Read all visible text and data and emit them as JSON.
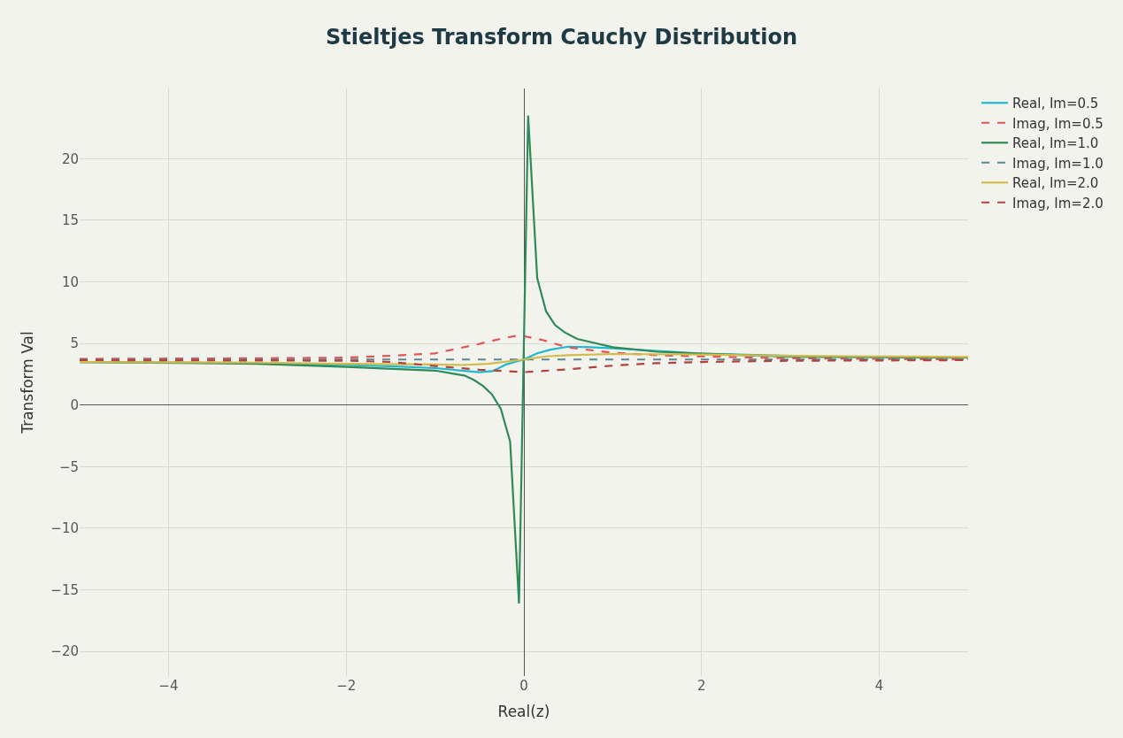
{
  "chart_data": {
    "type": "line",
    "title": "Stieltjes Transform Cauchy Distribution",
    "xlabel": "Real(z)",
    "ylabel": "Transform Val",
    "xlim": [
      -5,
      5
    ],
    "xticks": [
      -4,
      -2,
      0,
      2,
      4
    ],
    "ylim": [
      -22,
      25.7
    ],
    "yticks": [
      -20,
      -15,
      -10,
      -5,
      0,
      5,
      10,
      15,
      20
    ],
    "grid": true,
    "legend": "top right",
    "marker": "none",
    "series": [
      {
        "name": "Real, Im=0.5",
        "color": "#1fb8cd",
        "line_style": "solid",
        "x": [
          -5,
          -3,
          -2,
          -1.5,
          -1,
          -0.7,
          -0.5,
          -0.35,
          -0.2,
          -0.1,
          0,
          0.15,
          0.3,
          0.5,
          0.75,
          1,
          1.5,
          2,
          3
        ],
        "values": [
          3.5,
          3.4,
          3.25,
          3.15,
          3.0,
          2.8,
          2.67,
          2.75,
          3.3,
          3.5,
          3.7,
          4.2,
          4.5,
          4.74,
          4.7,
          4.6,
          4.4,
          4.17,
          4.0
        ]
      },
      {
        "name": "Imag, Im=0.5",
        "color": "#e05555",
        "line_style": "dashed",
        "x": [
          -5,
          -3,
          -2,
          -1.5,
          -1,
          -0.5,
          -0.25,
          -0.05,
          0.2,
          0.5,
          1,
          1.5,
          2,
          3,
          4,
          5
        ],
        "values": [
          3.75,
          3.8,
          3.85,
          4.0,
          4.2,
          4.97,
          5.4,
          5.67,
          5.3,
          4.67,
          4.25,
          4.05,
          3.95,
          3.8,
          3.75,
          3.7
        ]
      },
      {
        "name": "Real, Im=1.0",
        "color": "#2e8b57",
        "line_style": "solid",
        "x": [
          -5,
          -3,
          -2,
          -1,
          -0.67,
          -0.56,
          -0.46,
          -0.36,
          -0.26,
          -0.155,
          -0.055,
          0.048,
          0.15,
          0.25,
          0.35,
          0.46,
          0.6,
          1,
          1.5,
          2,
          3,
          4,
          5
        ],
        "values": [
          3.5,
          3.35,
          3.1,
          2.8,
          2.4,
          2.03,
          1.55,
          0.86,
          -0.3,
          -2.96,
          -16.1,
          23.5,
          10.3,
          7.6,
          6.5,
          5.9,
          5.37,
          4.7,
          4.33,
          4.17,
          3.93,
          3.88,
          3.85
        ]
      },
      {
        "name": "Imag, Im=1.0",
        "color": "#5d878f",
        "line_style": "dashed",
        "x": [
          -5,
          5
        ],
        "values": [
          3.7,
          3.7
        ]
      },
      {
        "name": "Real, Im=2.0",
        "color": "#d2ba4c",
        "line_style": "solid",
        "x": [
          -5,
          -3,
          -2,
          -1,
          -0.7,
          -0.4,
          0,
          0.25,
          0.5,
          1,
          2,
          3,
          4,
          5
        ],
        "values": [
          3.5,
          3.45,
          3.35,
          3.3,
          3.25,
          3.35,
          3.7,
          3.95,
          4.05,
          4.15,
          4.1,
          4.0,
          3.95,
          3.9
        ]
      },
      {
        "name": "Imag, Im=2.0",
        "color": "#b4413c",
        "line_style": "dashed",
        "x": [
          -5,
          -3,
          -2,
          -1.5,
          -1,
          -0.5,
          0,
          0.5,
          1,
          1.5,
          2,
          3,
          4,
          5
        ],
        "values": [
          3.65,
          3.62,
          3.6,
          3.5,
          3.17,
          2.87,
          2.67,
          2.9,
          3.2,
          3.4,
          3.5,
          3.6,
          3.62,
          3.65
        ]
      }
    ]
  }
}
